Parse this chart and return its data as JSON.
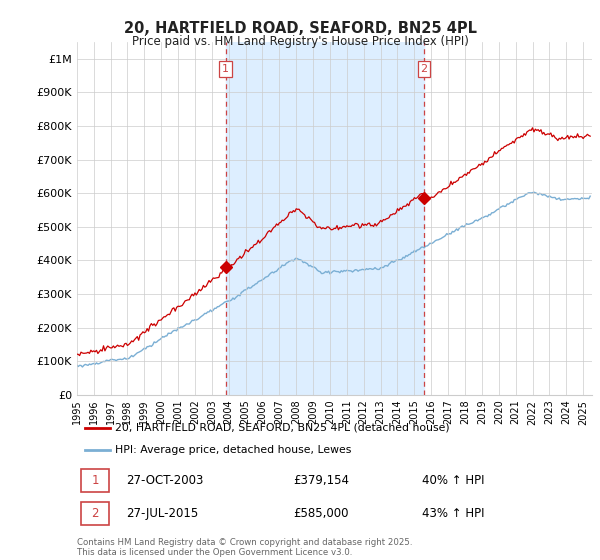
{
  "title": "20, HARTFIELD ROAD, SEAFORD, BN25 4PL",
  "subtitle": "Price paid vs. HM Land Registry's House Price Index (HPI)",
  "ylabel_ticks": [
    "£0",
    "£100K",
    "£200K",
    "£300K",
    "£400K",
    "£500K",
    "£600K",
    "£700K",
    "£800K",
    "£900K",
    "£1M"
  ],
  "ytick_values": [
    0,
    100000,
    200000,
    300000,
    400000,
    500000,
    600000,
    700000,
    800000,
    900000,
    1000000
  ],
  "ylim": [
    0,
    1050000
  ],
  "xlim_start": 1995.0,
  "xlim_end": 2025.5,
  "vline1_x": 2003.82,
  "vline2_x": 2015.57,
  "sale1_price_val": 379154,
  "sale2_price_val": 585000,
  "sale1_date": "27-OCT-2003",
  "sale1_price": "£379,154",
  "sale1_pct": "40% ↑ HPI",
  "sale2_date": "27-JUL-2015",
  "sale2_price": "£585,000",
  "sale2_pct": "43% ↑ HPI",
  "legend_line1": "20, HARTFIELD ROAD, SEAFORD, BN25 4PL (detached house)",
  "legend_line2": "HPI: Average price, detached house, Lewes",
  "footer": "Contains HM Land Registry data © Crown copyright and database right 2025.\nThis data is licensed under the Open Government Licence v3.0.",
  "line_color_red": "#cc0000",
  "line_color_blue": "#7bafd4",
  "fill_color": "#ddeeff",
  "vline_color": "#cc4444",
  "grid_color": "#cccccc",
  "background_color": "#ffffff"
}
